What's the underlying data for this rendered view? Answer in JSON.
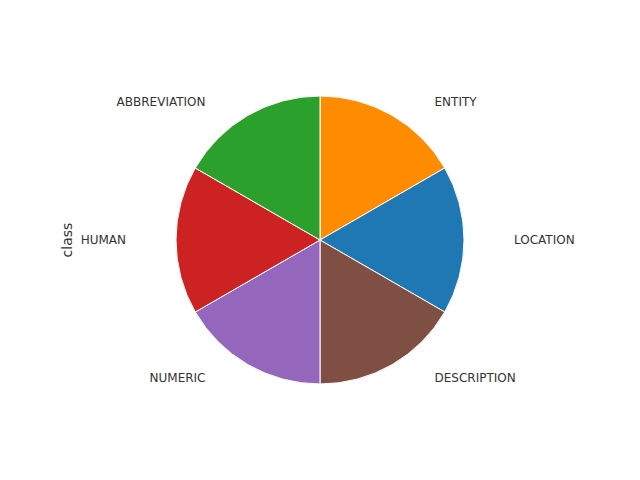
{
  "chart_data": {
    "type": "pie",
    "categories": [
      "ENTITY",
      "LOCATION",
      "DESCRIPTION",
      "NUMERIC",
      "HUMAN",
      "ABBREVIATION"
    ],
    "values": [
      1,
      1,
      1,
      1,
      1,
      1
    ],
    "colors": [
      "#FF8C00",
      "#1F77B4",
      "#7F4F44",
      "#9467BD",
      "#CC2222",
      "#2CA02C"
    ],
    "ylabel": "class"
  }
}
